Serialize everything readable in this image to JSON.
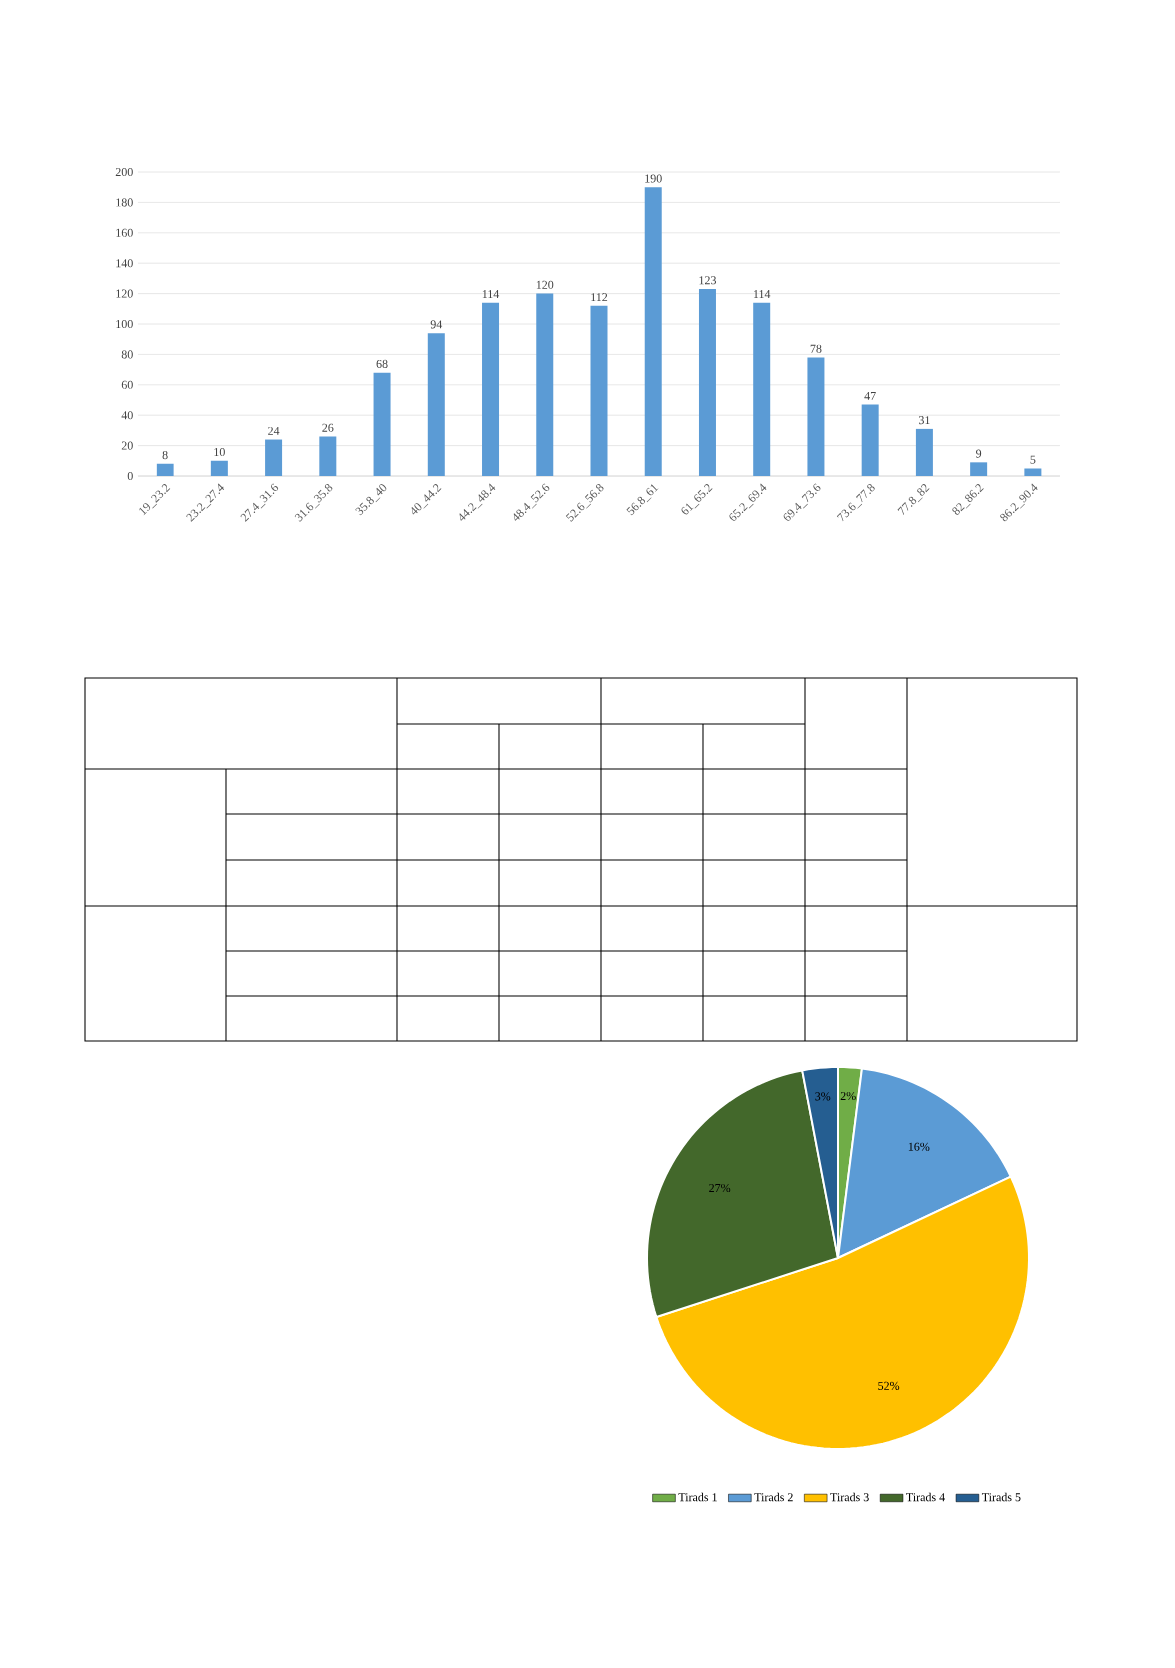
{
  "chart_data": [
    {
      "type": "bar",
      "categories": [
        "19_23.2",
        "23.2_27.4",
        "27.4_31.6",
        "31.6_35.8",
        "35.8_40",
        "40_44.2",
        "44.2_48.4",
        "48.4_52.6",
        "52.6_56.8",
        "56.8_61",
        "61_65.2",
        "65.2_69.4",
        "69.4_73.6",
        "73.6_77.8",
        "77.8_82",
        "82_86.2",
        "86.2_90.4"
      ],
      "values": [
        8,
        10,
        24,
        26,
        68,
        94,
        114,
        120,
        112,
        190,
        123,
        114,
        78,
        47,
        31,
        9,
        5
      ],
      "color": "#5b9bd5",
      "ylim": [
        0,
        200
      ],
      "yticks": [
        0,
        20,
        40,
        60,
        80,
        100,
        120,
        140,
        160,
        180,
        200
      ],
      "grid": "y",
      "data_labels": true
    },
    {
      "type": "pie",
      "categories": [
        "Tirads 1",
        "Tirads 2",
        "Tirads 3",
        "Tirads 4",
        "Tirads 5"
      ],
      "values": [
        2,
        16,
        52,
        27,
        3
      ],
      "value_labels": [
        "2%",
        "16%",
        "52%",
        "27%",
        "3%"
      ],
      "colors": [
        "#70ad47",
        "#5b9bd5",
        "#ffc000",
        "#43682b",
        "#255e91"
      ],
      "legend": "bottom"
    }
  ]
}
